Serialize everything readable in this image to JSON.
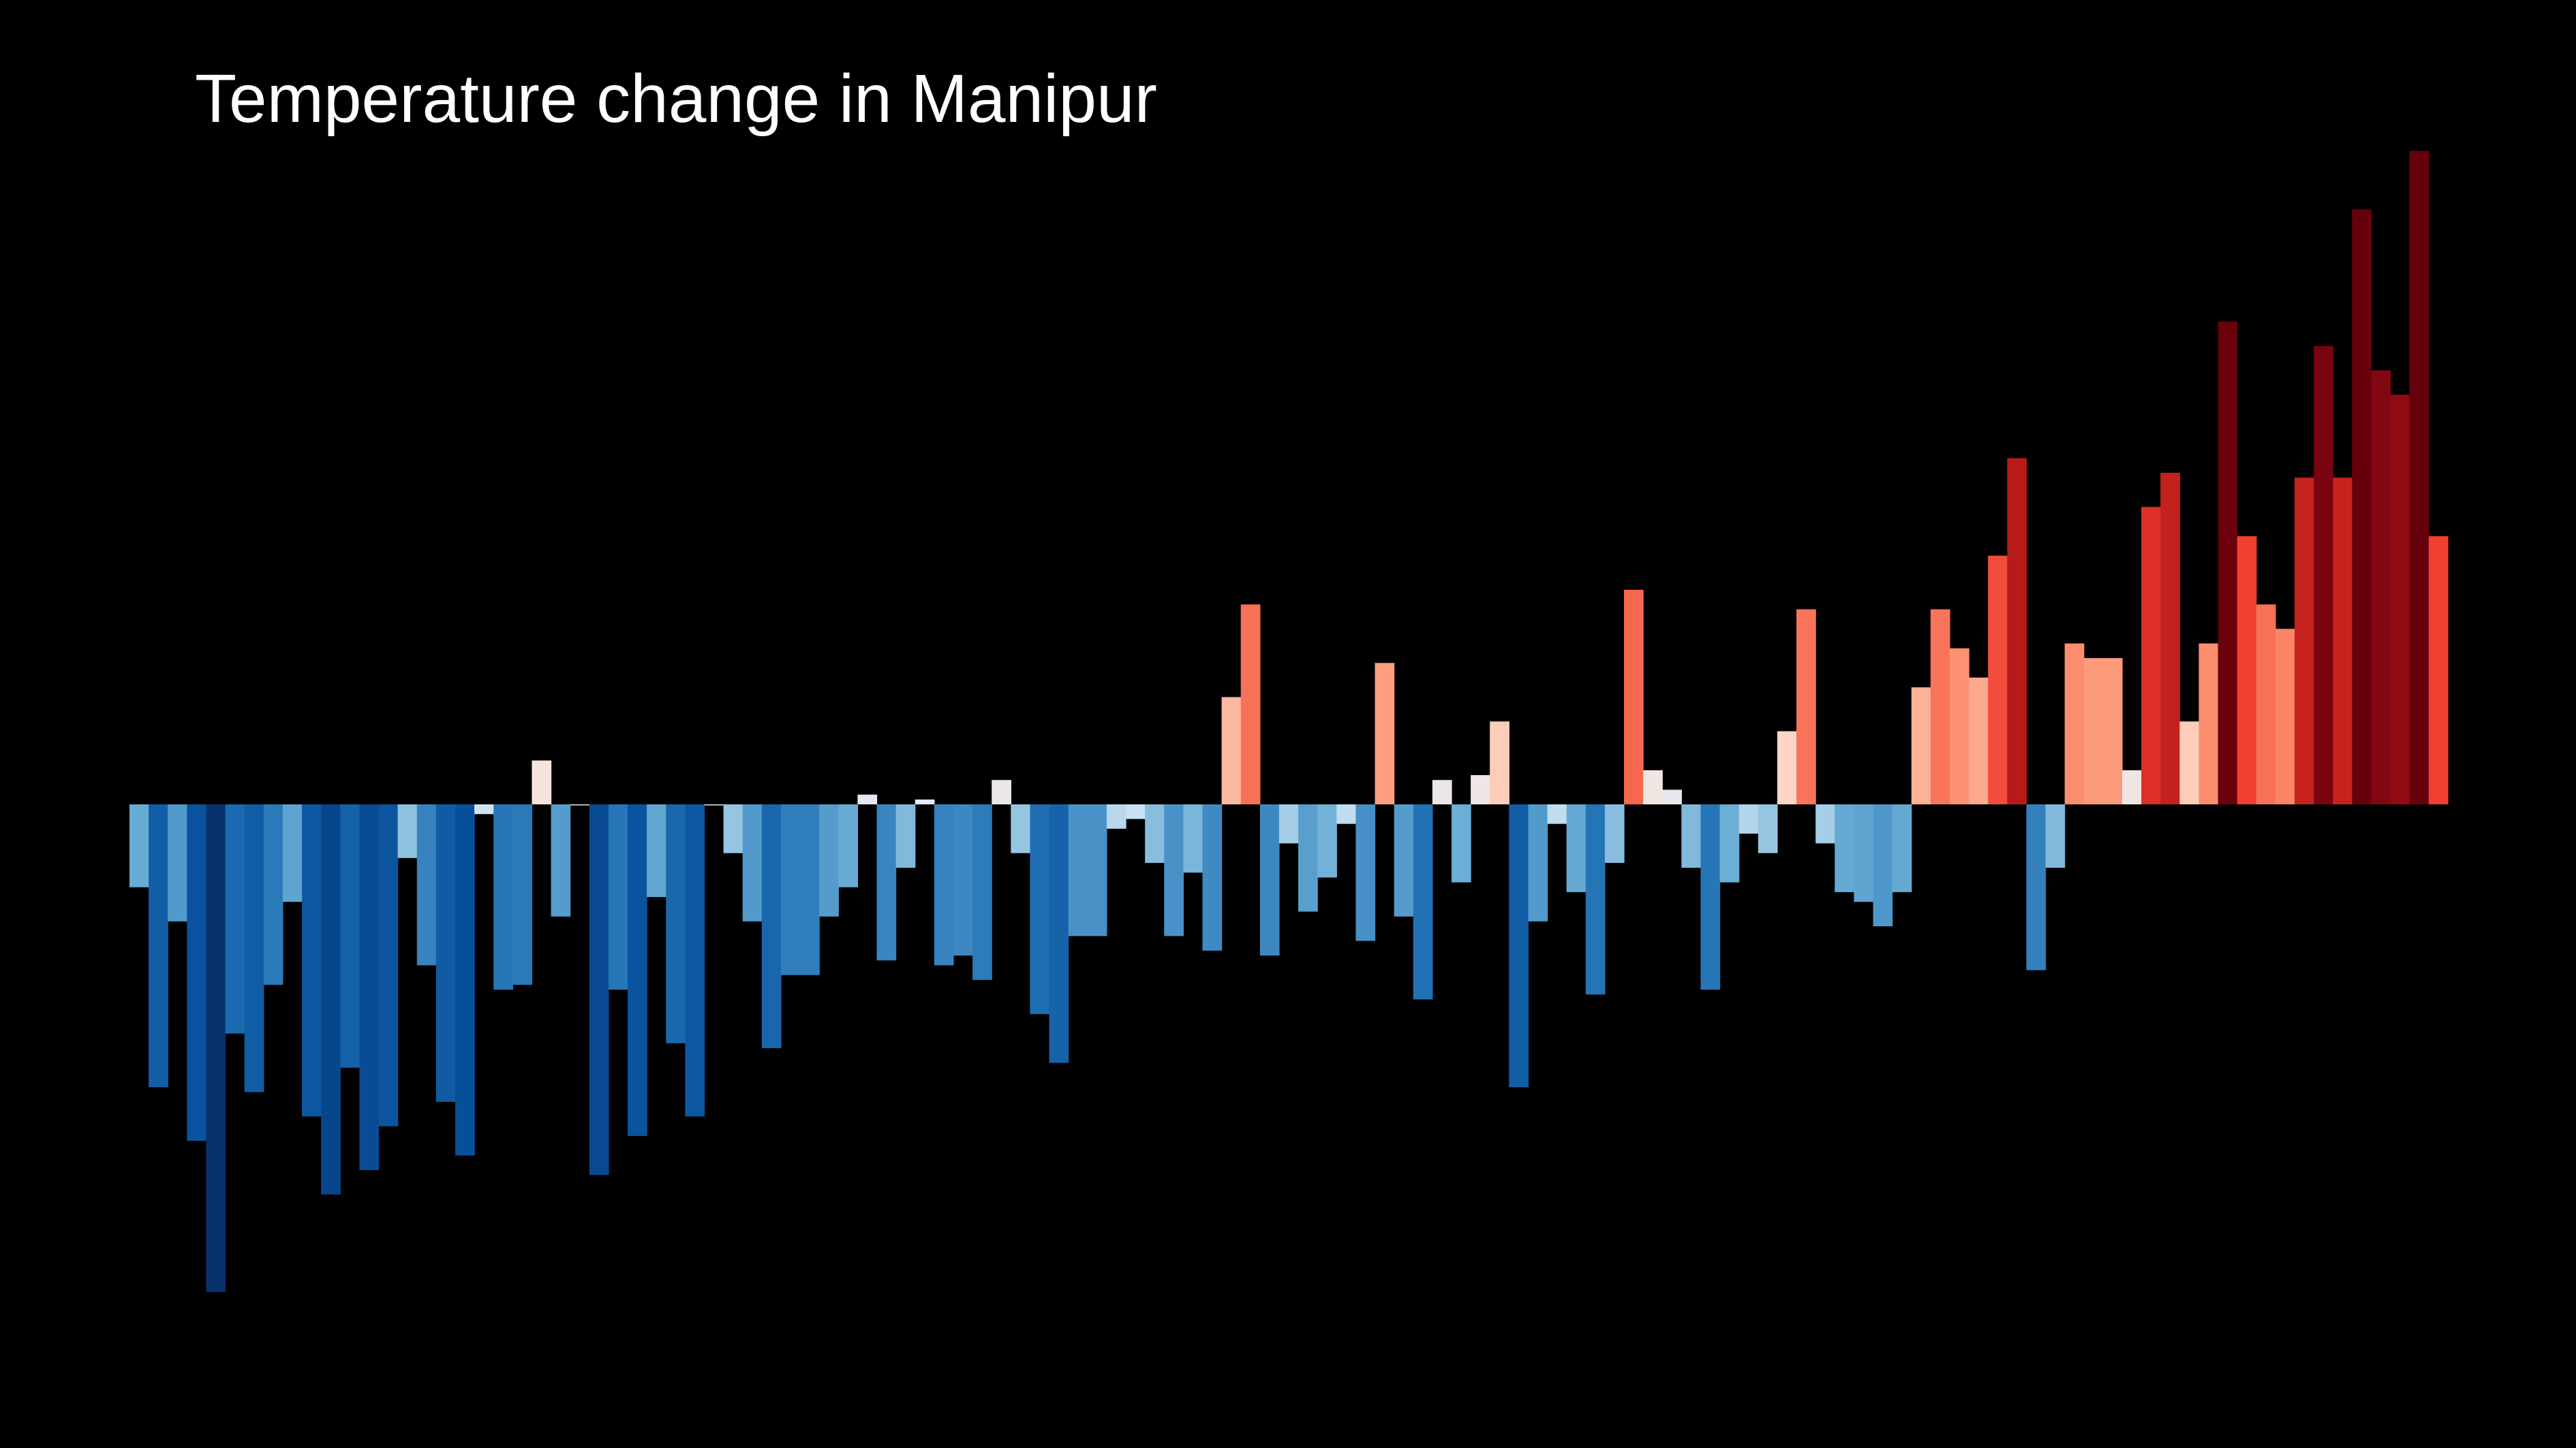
{
  "chart_data": {
    "type": "bar",
    "title": "Temperature change in Manipur",
    "xlabel": "",
    "ylabel": "",
    "ylim": [
      -1.0,
      1.34
    ],
    "grid": false,
    "legend": "none",
    "colormap": "diverging blue-white-red",
    "values": [
      -0.17,
      -0.58,
      -0.24,
      -0.69,
      -1.0,
      -0.47,
      -0.59,
      -0.37,
      -0.2,
      -0.64,
      -0.8,
      -0.54,
      -0.75,
      -0.66,
      -0.11,
      -0.33,
      -0.61,
      -0.72,
      -0.02,
      -0.38,
      -0.37,
      0.09,
      -0.23,
      0.0,
      -0.76,
      -0.38,
      -0.68,
      -0.19,
      -0.49,
      -0.64,
      0.0,
      -0.1,
      -0.24,
      -0.5,
      -0.35,
      -0.35,
      -0.23,
      -0.17,
      0.02,
      -0.32,
      -0.13,
      0.01,
      -0.33,
      -0.31,
      -0.36,
      0.05,
      -0.1,
      -0.43,
      -0.53,
      -0.27,
      -0.27,
      -0.05,
      -0.03,
      -0.12,
      -0.27,
      -0.14,
      -0.3,
      0.22,
      0.41,
      -0.31,
      -0.08,
      -0.22,
      -0.15,
      -0.04,
      -0.28,
      0.29,
      -0.23,
      -0.4,
      0.05,
      -0.16,
      0.06,
      0.17,
      -0.58,
      -0.24,
      -0.04,
      -0.18,
      -0.39,
      -0.12,
      0.44,
      0.07,
      0.03,
      -0.13,
      -0.38,
      -0.16,
      -0.06,
      -0.1,
      0.15,
      0.4,
      -0.08,
      -0.18,
      -0.2,
      -0.25,
      -0.18,
      0.24,
      0.4,
      0.32,
      0.26,
      0.51,
      0.71,
      -0.34,
      -0.13,
      0.33,
      0.3,
      0.3,
      0.07,
      0.61,
      0.68,
      0.17,
      0.33,
      0.99,
      0.55,
      0.41,
      0.36,
      0.67,
      0.94,
      0.67,
      1.22,
      0.89,
      0.84,
      1.34,
      0.55
    ]
  }
}
